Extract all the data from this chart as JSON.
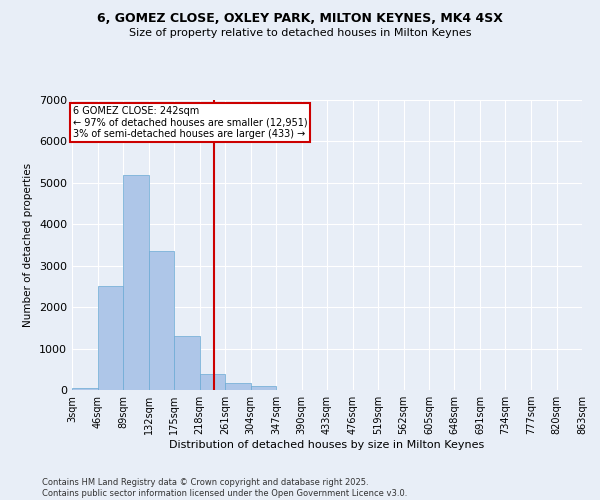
{
  "title1": "6, GOMEZ CLOSE, OXLEY PARK, MILTON KEYNES, MK4 4SX",
  "title2": "Size of property relative to detached houses in Milton Keynes",
  "xlabel": "Distribution of detached houses by size in Milton Keynes",
  "ylabel": "Number of detached properties",
  "footer1": "Contains HM Land Registry data © Crown copyright and database right 2025.",
  "footer2": "Contains public sector information licensed under the Open Government Licence v3.0.",
  "annotation_line1": "6 GOMEZ CLOSE: 242sqm",
  "annotation_line2": "← 97% of detached houses are smaller (12,951)",
  "annotation_line3": "3% of semi-detached houses are larger (433) →",
  "subject_value": 242,
  "bar_edges": [
    3,
    46,
    89,
    132,
    175,
    218,
    261,
    304,
    347,
    390,
    433,
    476,
    519,
    562,
    605,
    648,
    691,
    734,
    777,
    820,
    863
  ],
  "bar_heights": [
    50,
    2500,
    5200,
    3350,
    1300,
    375,
    175,
    100,
    0,
    0,
    0,
    0,
    0,
    0,
    0,
    0,
    0,
    0,
    0,
    0
  ],
  "bar_color": "#aec6e8",
  "bar_edge_color": "#6aaad4",
  "vline_color": "#cc0000",
  "background_color": "#e8eef7",
  "grid_color": "#ffffff",
  "ylim": [
    0,
    7000
  ],
  "yticks": [
    0,
    1000,
    2000,
    3000,
    4000,
    5000,
    6000,
    7000
  ]
}
